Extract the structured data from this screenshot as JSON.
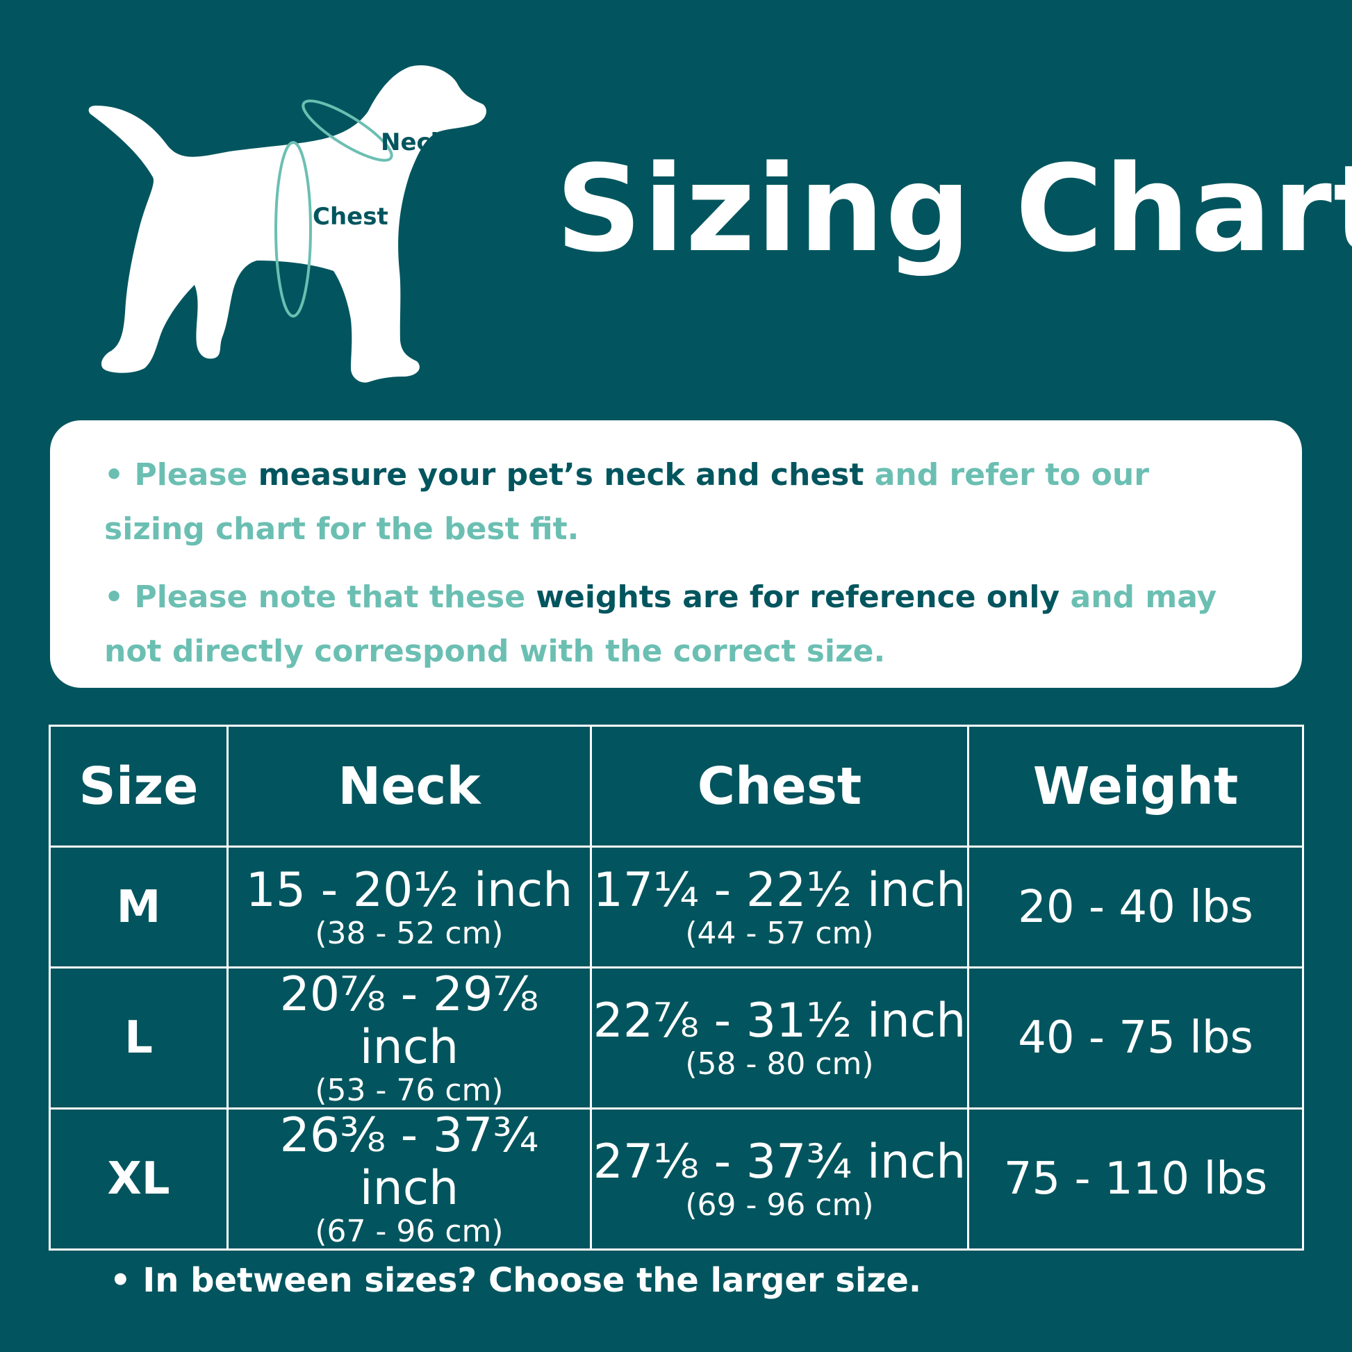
{
  "illustration": {
    "icon": "dog-silhouette-icon",
    "neck_label": "Neck",
    "chest_label": "Chest",
    "accent_color": "#6bbfb2"
  },
  "title": "Sizing Chart",
  "notes": [
    {
      "bullet": "• ",
      "part1": "Please ",
      "part2": "measure your pet’s neck and chest",
      "part3": " and refer to our sizing chart for the best fit."
    },
    {
      "bullet": "• ",
      "part1": "Please note that these ",
      "part2": "weights are for reference only",
      "part3": " and may not directly correspond with the correct size."
    }
  ],
  "table": {
    "headers": [
      "Size",
      "Neck",
      "Chest",
      "Weight"
    ],
    "rows": [
      {
        "size": "M",
        "neck_inch": "15 - 20½ inch",
        "neck_cm": "(38 - 52 cm)",
        "chest_inch": "17¼ - 22½ inch",
        "chest_cm": "(44 - 57 cm)",
        "weight": "20 - 40 lbs"
      },
      {
        "size": "L",
        "neck_inch": "20⅞ - 29⅞ inch",
        "neck_cm": "(53 - 76 cm)",
        "chest_inch": "22⅞ - 31½ inch",
        "chest_cm": "(58 - 80 cm)",
        "weight": "40 - 75 lbs"
      },
      {
        "size": "XL",
        "neck_inch": "26⅜ - 37¾ inch",
        "neck_cm": "(67 - 96 cm)",
        "chest_inch": "27⅛ - 37¾ inch",
        "chest_cm": "(69 - 96 cm)",
        "weight": "75 - 110 lbs"
      }
    ]
  },
  "footer": "• In between sizes? Choose the larger size.",
  "colors": {
    "background": "#02555e",
    "accent": "#6bbfb2",
    "text_light": "#ffffff"
  }
}
